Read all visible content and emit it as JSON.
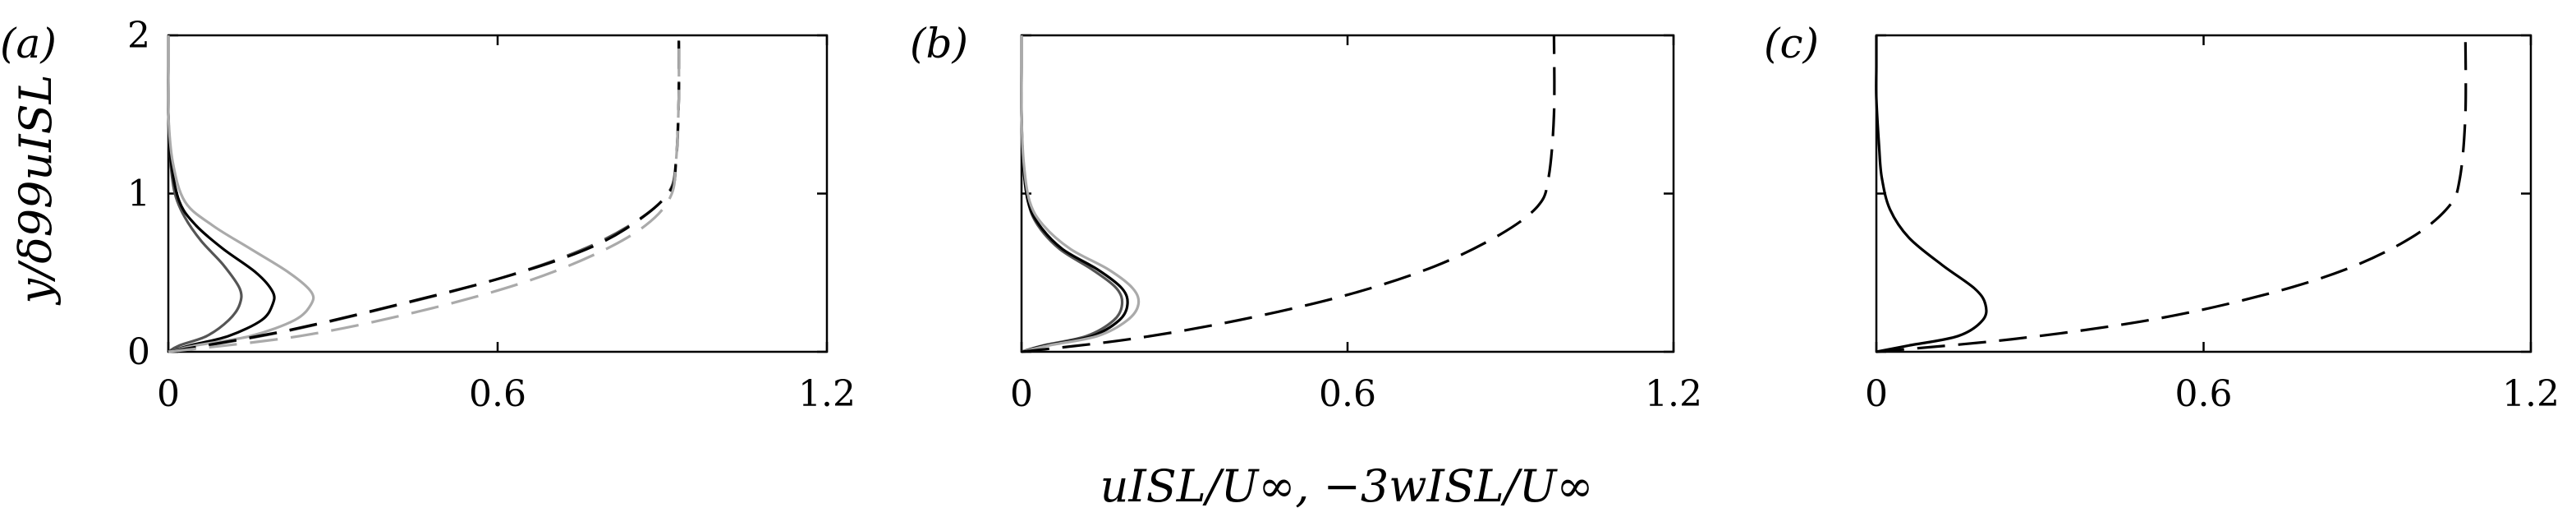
{
  "figure": {
    "panel_labels": [
      "(a)",
      "(b)",
      "(c)"
    ],
    "ylabel": "y/δ99uISL",
    "xlabel": "uISL/U∞, −3wISL/U∞",
    "colors": {
      "black": "#000000",
      "dark_grey": "#555555",
      "light_grey": "#aaaaaa"
    }
  },
  "chart_data": [
    {
      "type": "line",
      "panel": "(a)",
      "xlim": [
        0,
        1.2
      ],
      "ylim": [
        0,
        2
      ],
      "xticks": [
        "0",
        "0.6",
        "1.2"
      ],
      "yticks": [
        "0",
        "1",
        "2"
      ],
      "grid": false,
      "series": [
        {
          "style": "solid",
          "color": "#555555",
          "x": [
            0,
            0.02,
            0.07,
            0.11,
            0.13,
            0.13,
            0.1,
            0.06,
            0.03,
            0.012,
            0.004,
            0,
            0,
            0
          ],
          "y": [
            0,
            0.04,
            0.1,
            0.2,
            0.3,
            0.4,
            0.55,
            0.7,
            0.85,
            1.0,
            1.2,
            1.5,
            1.8,
            2.0
          ]
        },
        {
          "style": "solid",
          "color": "#000000",
          "x": [
            0,
            0.04,
            0.11,
            0.17,
            0.19,
            0.19,
            0.16,
            0.1,
            0.05,
            0.02,
            0.005,
            0,
            0,
            0
          ],
          "y": [
            0,
            0.04,
            0.1,
            0.2,
            0.3,
            0.38,
            0.5,
            0.65,
            0.8,
            0.95,
            1.2,
            1.5,
            1.8,
            2.0
          ]
        },
        {
          "style": "solid",
          "color": "#aaaaaa",
          "x": [
            0,
            0.05,
            0.15,
            0.23,
            0.26,
            0.26,
            0.22,
            0.15,
            0.08,
            0.03,
            0.008,
            0,
            0,
            0
          ],
          "y": [
            0,
            0.04,
            0.1,
            0.2,
            0.3,
            0.38,
            0.5,
            0.65,
            0.8,
            0.95,
            1.2,
            1.5,
            1.8,
            2.0
          ]
        },
        {
          "style": "dashed",
          "color": "#555555",
          "x": [
            0,
            0.2,
            0.4,
            0.6,
            0.75,
            0.85,
            0.91,
            0.925,
            0.93,
            0.93
          ],
          "y": [
            0,
            0.12,
            0.28,
            0.46,
            0.64,
            0.82,
            1.0,
            1.2,
            1.6,
            2.0
          ]
        },
        {
          "style": "dashed",
          "color": "#000000",
          "x": [
            0,
            0.21,
            0.42,
            0.62,
            0.77,
            0.86,
            0.915,
            0.925,
            0.93,
            0.93
          ],
          "y": [
            0,
            0.13,
            0.3,
            0.48,
            0.66,
            0.84,
            1.02,
            1.2,
            1.6,
            2.0
          ]
        },
        {
          "style": "dashed",
          "color": "#aaaaaa",
          "x": [
            0,
            0.24,
            0.45,
            0.64,
            0.78,
            0.87,
            0.915,
            0.925,
            0.93,
            0.93
          ],
          "y": [
            0,
            0.1,
            0.25,
            0.43,
            0.62,
            0.8,
            0.98,
            1.2,
            1.6,
            2.0
          ]
        }
      ]
    },
    {
      "type": "line",
      "panel": "(b)",
      "xlim": [
        0,
        1.2
      ],
      "ylim": [
        0,
        2
      ],
      "xticks": [
        "0",
        "0.6",
        "1.2"
      ],
      "yticks": [],
      "grid": false,
      "series": [
        {
          "style": "solid",
          "color": "#555555",
          "x": [
            0,
            0.04,
            0.12,
            0.17,
            0.185,
            0.175,
            0.13,
            0.07,
            0.03,
            0.012,
            0.003,
            0,
            0,
            0
          ],
          "y": [
            0,
            0.04,
            0.1,
            0.2,
            0.3,
            0.4,
            0.52,
            0.65,
            0.8,
            0.95,
            1.2,
            1.5,
            1.8,
            2.0
          ]
        },
        {
          "style": "solid",
          "color": "#000000",
          "x": [
            0,
            0.045,
            0.13,
            0.18,
            0.195,
            0.185,
            0.14,
            0.075,
            0.033,
            0.012,
            0.003,
            0,
            0,
            0
          ],
          "y": [
            0,
            0.04,
            0.1,
            0.2,
            0.3,
            0.4,
            0.52,
            0.65,
            0.8,
            0.95,
            1.2,
            1.5,
            1.8,
            2.0
          ]
        },
        {
          "style": "solid",
          "color": "#aaaaaa",
          "x": [
            0,
            0.05,
            0.14,
            0.195,
            0.215,
            0.205,
            0.16,
            0.09,
            0.04,
            0.015,
            0.004,
            0,
            0,
            0
          ],
          "y": [
            0,
            0.04,
            0.1,
            0.2,
            0.3,
            0.4,
            0.52,
            0.65,
            0.8,
            0.95,
            1.2,
            1.5,
            1.8,
            2.0
          ]
        },
        {
          "style": "dashed",
          "color": "#000000",
          "x": [
            0,
            0.2,
            0.4,
            0.6,
            0.76,
            0.88,
            0.95,
            0.97,
            0.98,
            0.98
          ],
          "y": [
            0,
            0.08,
            0.2,
            0.36,
            0.54,
            0.74,
            0.92,
            1.1,
            1.5,
            2.0
          ]
        }
      ]
    },
    {
      "type": "line",
      "panel": "(c)",
      "xlim": [
        0,
        1.2
      ],
      "ylim": [
        0,
        2
      ],
      "xticks": [
        "0",
        "0.6",
        "1.2"
      ],
      "yticks": [],
      "grid": false,
      "series": [
        {
          "style": "solid",
          "color": "#000000",
          "x": [
            0,
            0.06,
            0.15,
            0.195,
            0.2,
            0.18,
            0.12,
            0.06,
            0.025,
            0.01,
            0.005,
            0,
            0,
            0
          ],
          "y": [
            0,
            0.04,
            0.1,
            0.2,
            0.3,
            0.4,
            0.55,
            0.72,
            0.9,
            1.1,
            1.3,
            1.6,
            1.8,
            2.0
          ]
        },
        {
          "style": "dashed",
          "color": "#000000",
          "x": [
            0,
            0.25,
            0.5,
            0.7,
            0.86,
            0.98,
            1.05,
            1.07,
            1.08,
            1.08
          ],
          "y": [
            0,
            0.08,
            0.2,
            0.35,
            0.52,
            0.72,
            0.92,
            1.1,
            1.5,
            2.0
          ]
        }
      ]
    }
  ]
}
